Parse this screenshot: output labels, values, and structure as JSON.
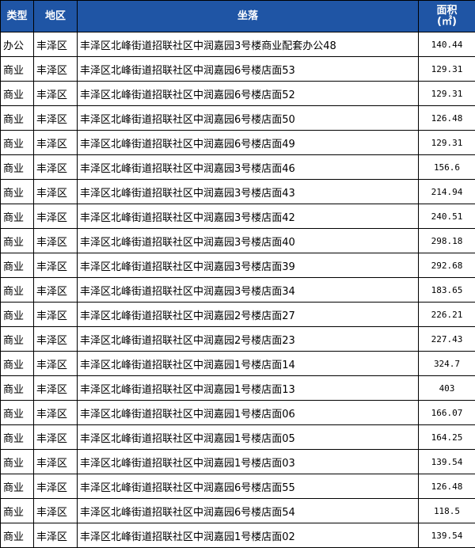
{
  "table": {
    "header": [
      "类型",
      "地区",
      "坐落",
      "面积",
      "(㎡)"
    ],
    "rows": [
      [
        "办公",
        "丰泽区",
        "丰泽区北峰街道招联社区中润嘉园3号楼商业配套办公48",
        "140.44"
      ],
      [
        "商业",
        "丰泽区",
        "丰泽区北峰街道招联社区中润嘉园6号楼店面53",
        "129.31"
      ],
      [
        "商业",
        "丰泽区",
        "丰泽区北峰街道招联社区中润嘉园6号楼店面52",
        "129.31"
      ],
      [
        "商业",
        "丰泽区",
        "丰泽区北峰街道招联社区中润嘉园6号楼店面50",
        "126.48"
      ],
      [
        "商业",
        "丰泽区",
        "丰泽区北峰街道招联社区中润嘉园6号楼店面49",
        "129.31"
      ],
      [
        "商业",
        "丰泽区",
        "丰泽区北峰街道招联社区中润嘉园3号楼店面46",
        "156.6"
      ],
      [
        "商业",
        "丰泽区",
        "丰泽区北峰街道招联社区中润嘉园3号楼店面43",
        "214.94"
      ],
      [
        "商业",
        "丰泽区",
        "丰泽区北峰街道招联社区中润嘉园3号楼店面42",
        "240.51"
      ],
      [
        "商业",
        "丰泽区",
        "丰泽区北峰街道招联社区中润嘉园3号楼店面40",
        "298.18"
      ],
      [
        "商业",
        "丰泽区",
        "丰泽区北峰街道招联社区中润嘉园3号楼店面39",
        "292.68"
      ],
      [
        "商业",
        "丰泽区",
        "丰泽区北峰街道招联社区中润嘉园3号楼店面34",
        "183.65"
      ],
      [
        "商业",
        "丰泽区",
        "丰泽区北峰街道招联社区中润嘉园2号楼店面27",
        "226.21"
      ],
      [
        "商业",
        "丰泽区",
        "丰泽区北峰街道招联社区中润嘉园2号楼店面23",
        "227.43"
      ],
      [
        "商业",
        "丰泽区",
        "丰泽区北峰街道招联社区中润嘉园1号楼店面14",
        "324.7"
      ],
      [
        "商业",
        "丰泽区",
        "丰泽区北峰街道招联社区中润嘉园1号楼店面13",
        "403"
      ],
      [
        "商业",
        "丰泽区",
        "丰泽区北峰街道招联社区中润嘉园1号楼店面06",
        "166.07"
      ],
      [
        "商业",
        "丰泽区",
        "丰泽区北峰街道招联社区中润嘉园1号楼店面05",
        "164.25"
      ],
      [
        "商业",
        "丰泽区",
        "丰泽区北峰街道招联社区中润嘉园1号楼店面03",
        "139.54"
      ],
      [
        "商业",
        "丰泽区",
        "丰泽区北峰街道招联社区中润嘉园6号楼店面55",
        "126.48"
      ],
      [
        "商业",
        "丰泽区",
        "丰泽区北峰街道招联社区中润嘉园6号楼店面54",
        "118.5"
      ],
      [
        "商业",
        "丰泽区",
        "丰泽区北峰街道招联社区中润嘉园1号楼店面02",
        "139.54"
      ]
    ]
  }
}
